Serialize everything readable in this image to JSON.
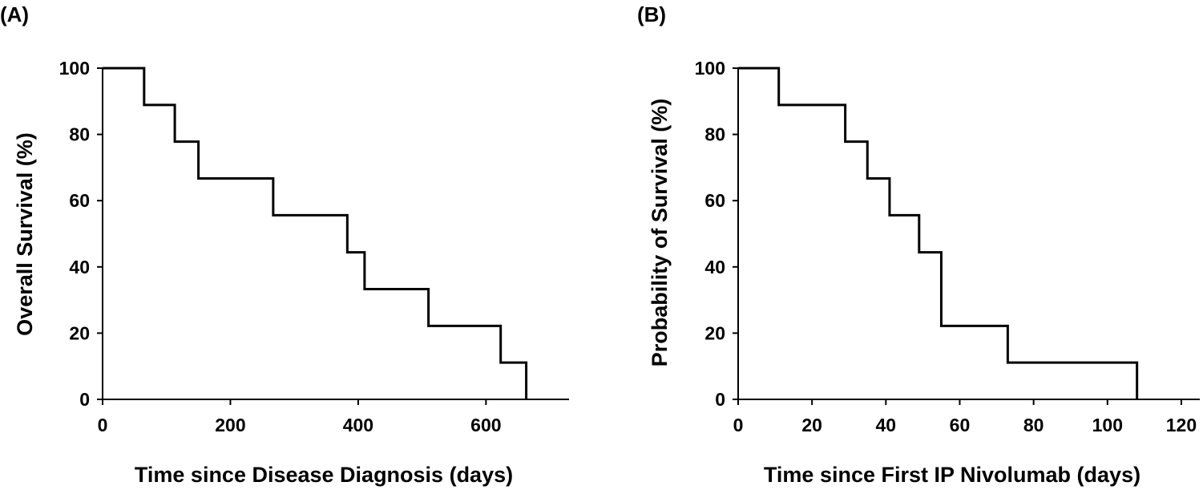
{
  "chart_data": [
    {
      "type": "line",
      "panel_label": "(A)",
      "title": "",
      "xlabel": "Time since Disease Diagnosis (days)",
      "ylabel": "Overall Survival (%)",
      "xlim": [
        0,
        730
      ],
      "ylim": [
        0,
        100
      ],
      "xticks": [
        0,
        200,
        400,
        600
      ],
      "yticks": [
        0,
        20,
        40,
        60,
        80,
        100
      ],
      "grid": false,
      "legend": "none",
      "series": [
        {
          "step": "post",
          "x": [
            0,
            65,
            113,
            150,
            267,
            383,
            410,
            510,
            623,
            663,
            663
          ],
          "y": [
            100,
            88.9,
            77.8,
            66.7,
            55.6,
            44.4,
            33.3,
            22.2,
            11.1,
            0,
            0
          ]
        }
      ]
    },
    {
      "type": "line",
      "panel_label": "(B)",
      "title": "",
      "xlabel": "Time since First IP Nivolumab (days)",
      "ylabel": "Probability of Survival (%)",
      "xlim": [
        0,
        125
      ],
      "ylim": [
        0,
        100
      ],
      "xticks": [
        0,
        20,
        40,
        60,
        80,
        100,
        120
      ],
      "yticks": [
        0,
        20,
        40,
        60,
        80,
        100
      ],
      "grid": false,
      "legend": "none",
      "series": [
        {
          "step": "post",
          "x": [
            0,
            11,
            29,
            35,
            41,
            49,
            55,
            73,
            108,
            108
          ],
          "y": [
            100,
            88.9,
            77.8,
            66.7,
            55.6,
            44.4,
            22.2,
            11.1,
            0,
            0
          ]
        }
      ]
    }
  ]
}
